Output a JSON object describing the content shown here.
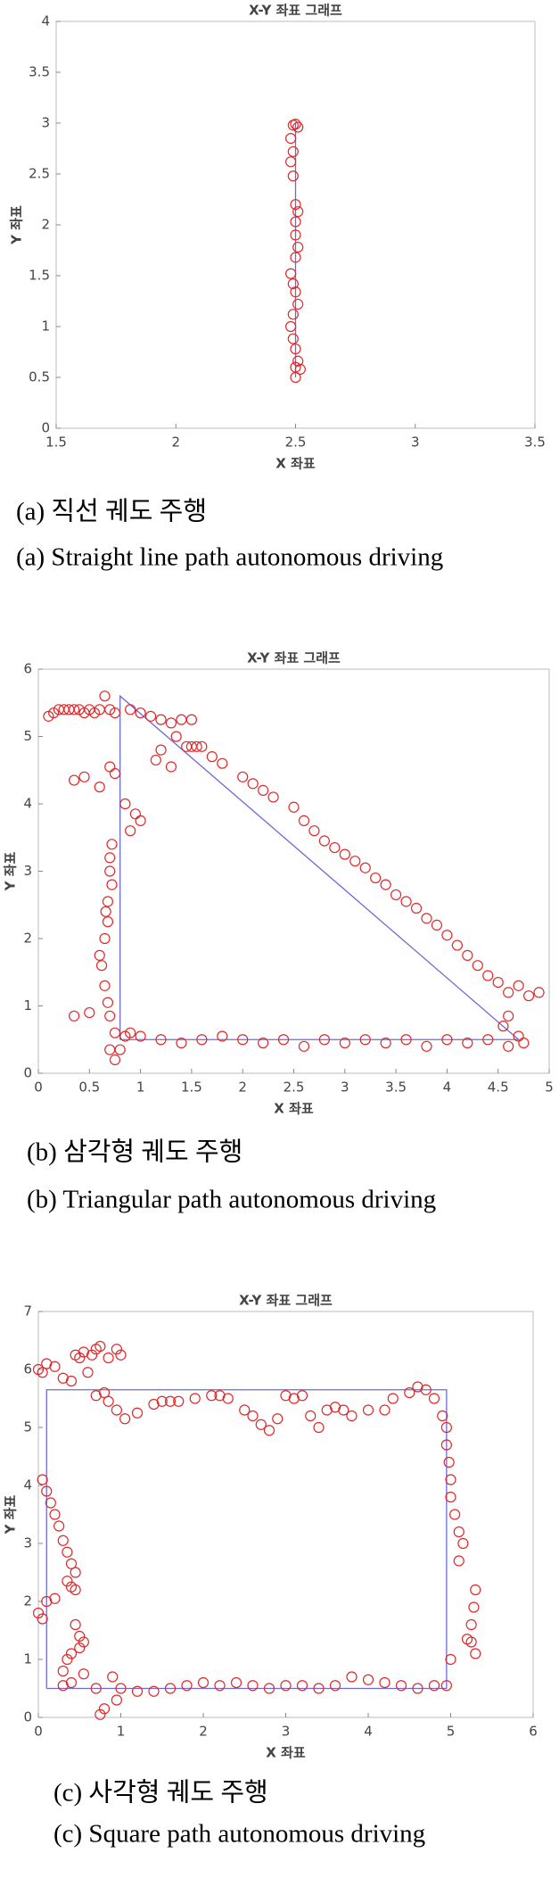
{
  "chart_data": [
    {
      "type": "scatter",
      "title": "X-Y 좌표 그래프",
      "xlabel": "X 좌표",
      "ylabel": "Y 좌표",
      "xlim": [
        1.5,
        3.5
      ],
      "xticks": [
        1.5,
        2,
        2.5,
        3,
        3.5
      ],
      "ylim": [
        0,
        4
      ],
      "yticks": [
        0,
        0.5,
        1,
        1.5,
        2,
        2.5,
        3,
        3.5,
        4
      ],
      "captions": [
        "(a) 직선 궤도 주행",
        "(a) Straight line path autonomous driving"
      ],
      "series": [
        {
          "style": "line",
          "color": "#6b6bd6",
          "x": [
            2.5,
            2.5
          ],
          "values": [
            0.5,
            3
          ]
        },
        {
          "style": "marker",
          "color": "#e0282a",
          "x": [
            2.49,
            2.5,
            2.51,
            2.48,
            2.49,
            2.48,
            2.49,
            2.5,
            2.51,
            2.5,
            2.5,
            2.51,
            2.5,
            2.48,
            2.49,
            2.5,
            2.51,
            2.49,
            2.48,
            2.49,
            2.5,
            2.51,
            2.5,
            2.52,
            2.5
          ],
          "values": [
            2.98,
            2.99,
            2.96,
            2.85,
            2.72,
            2.62,
            2.48,
            2.2,
            2.13,
            2.03,
            1.9,
            1.78,
            1.68,
            1.52,
            1.42,
            1.34,
            1.22,
            1.12,
            1.0,
            0.88,
            0.78,
            0.66,
            0.6,
            0.58,
            0.5
          ]
        }
      ]
    },
    {
      "type": "scatter",
      "title": "X-Y 좌표 그래프",
      "xlabel": "X 좌표",
      "ylabel": "Y 좌표",
      "xlim": [
        0,
        5
      ],
      "xticks": [
        0,
        0.5,
        1,
        1.5,
        2,
        2.5,
        3,
        3.5,
        4,
        4.5,
        5
      ],
      "ylim": [
        0,
        6
      ],
      "yticks": [
        0,
        1,
        2,
        3,
        4,
        5,
        6
      ],
      "captions": [
        "(b) 삼각형 궤도 주행",
        "(b) Triangular path autonomous driving"
      ],
      "series": [
        {
          "style": "line",
          "color": "#6b6bd6",
          "x": [
            0.8,
            0.8,
            4.7,
            0.8
          ],
          "values": [
            0.5,
            5.6,
            0.5,
            0.5
          ]
        },
        {
          "style": "marker",
          "color": "#e0282a",
          "x": [
            0.1,
            0.15,
            0.2,
            0.25,
            0.3,
            0.35,
            0.4,
            0.45,
            0.5,
            0.55,
            0.6,
            0.65,
            0.7,
            0.75,
            0.9,
            1.0,
            1.1,
            1.2,
            1.3,
            1.4,
            1.5,
            1.35,
            1.45,
            1.5,
            1.55,
            1.6,
            1.2,
            1.15,
            1.3,
            0.35,
            0.45,
            0.6,
            0.7,
            0.75,
            0.85,
            0.95,
            1.0,
            0.9,
            0.72,
            0.7,
            0.7,
            0.72,
            0.68,
            0.66,
            0.68,
            0.65,
            0.6,
            0.62,
            0.65,
            0.68,
            0.7,
            0.75,
            0.7,
            0.75,
            0.35,
            0.5,
            0.85,
            0.8,
            1.7,
            1.8,
            2.0,
            2.1,
            2.2,
            2.3,
            2.5,
            2.6,
            2.7,
            2.8,
            2.9,
            3.0,
            3.1,
            3.2,
            3.3,
            3.4,
            3.5,
            3.6,
            3.7,
            3.8,
            3.9,
            4.0,
            4.1,
            4.2,
            4.3,
            4.4,
            4.5,
            4.6,
            4.7,
            4.8,
            4.9,
            4.6,
            4.55,
            0.9,
            1.0,
            1.2,
            1.4,
            1.6,
            1.8,
            2.0,
            2.2,
            2.4,
            2.6,
            2.8,
            3.0,
            3.2,
            3.4,
            3.6,
            3.8,
            4.0,
            4.2,
            4.4,
            4.6,
            4.7,
            4.75
          ],
          "values": [
            5.3,
            5.35,
            5.4,
            5.4,
            5.4,
            5.4,
            5.4,
            5.35,
            5.4,
            5.35,
            5.4,
            5.6,
            5.4,
            5.35,
            5.4,
            5.35,
            5.3,
            5.25,
            5.2,
            5.25,
            5.25,
            5.0,
            4.85,
            4.85,
            4.85,
            4.85,
            4.8,
            4.65,
            4.55,
            4.35,
            4.4,
            4.25,
            4.55,
            4.45,
            4.0,
            3.85,
            3.75,
            3.6,
            3.4,
            3.2,
            3.0,
            2.8,
            2.55,
            2.4,
            2.25,
            2.0,
            1.75,
            1.6,
            1.3,
            1.05,
            0.85,
            0.6,
            0.35,
            0.2,
            0.85,
            0.9,
            0.55,
            0.35,
            4.7,
            4.6,
            4.4,
            4.3,
            4.2,
            4.1,
            3.95,
            3.75,
            3.6,
            3.45,
            3.35,
            3.25,
            3.15,
            3.05,
            2.9,
            2.8,
            2.65,
            2.55,
            2.45,
            2.3,
            2.2,
            2.05,
            1.9,
            1.75,
            1.6,
            1.45,
            1.35,
            1.2,
            1.3,
            1.15,
            1.2,
            0.85,
            0.7,
            0.6,
            0.55,
            0.5,
            0.45,
            0.5,
            0.55,
            0.5,
            0.45,
            0.5,
            0.4,
            0.5,
            0.45,
            0.5,
            0.45,
            0.5,
            0.4,
            0.5,
            0.45,
            0.5,
            0.4,
            0.55,
            0.45
          ]
        }
      ]
    },
    {
      "type": "scatter",
      "title": "X-Y 좌표 그래프",
      "xlabel": "X 좌표",
      "ylabel": "Y 좌표",
      "xlim": [
        0,
        6
      ],
      "xticks": [
        0,
        1,
        2,
        3,
        4,
        5,
        6
      ],
      "ylim": [
        0,
        7
      ],
      "yticks": [
        0,
        1,
        2,
        3,
        4,
        5,
        6,
        7
      ],
      "captions": [
        "(c) 사각형 궤도 주행",
        "(c) Square path autonomous driving"
      ],
      "series": [
        {
          "style": "line",
          "color": "#6b6bd6",
          "x": [
            0.1,
            0.1,
            4.95,
            4.95,
            0.1
          ],
          "values": [
            0.5,
            5.65,
            5.65,
            0.5,
            0.5
          ]
        },
        {
          "style": "marker",
          "color": "#e0282a",
          "x": [
            0,
            0.05,
            0.1,
            0.2,
            0.3,
            0.4,
            0.45,
            0.5,
            0.55,
            0.65,
            0.7,
            0.75,
            0.85,
            0.95,
            1.0,
            0.6,
            0.7,
            0.8,
            0.85,
            0.95,
            1.05,
            1.2,
            1.4,
            1.5,
            1.6,
            1.7,
            1.9,
            2.1,
            2.2,
            2.3,
            2.5,
            2.6,
            2.7,
            2.8,
            2.9,
            3.0,
            3.1,
            3.2,
            3.3,
            3.4,
            3.5,
            3.6,
            3.7,
            3.8,
            4.0,
            4.2,
            4.3,
            4.5,
            4.6,
            4.7,
            4.8,
            4.9,
            4.95,
            4.95,
            4.98,
            5.0,
            5.0,
            5.05,
            5.1,
            5.15,
            5.1,
            5.3,
            5.28,
            5.25,
            5.25,
            5.3,
            5.2,
            5.0,
            4.95,
            4.8,
            4.6,
            4.4,
            4.2,
            4.0,
            3.8,
            3.6,
            3.4,
            3.2,
            3.0,
            2.8,
            2.6,
            2.4,
            2.2,
            2.0,
            1.8,
            1.6,
            1.4,
            1.2,
            1.0,
            0.9,
            0.95,
            0.8,
            0.75,
            0.7,
            0.55,
            0.5,
            0.4,
            0.4,
            0.05,
            0.1,
            0.15,
            0.2,
            0.25,
            0.3,
            0.35,
            0.4,
            0.45,
            0.35,
            0.4,
            0.45,
            0.2,
            0.1,
            0,
            0.05,
            0.45,
            0.5,
            0.55,
            0.35,
            0.3,
            0.3
          ],
          "values": [
            6.0,
            5.95,
            6.1,
            6.05,
            5.85,
            5.8,
            6.25,
            6.2,
            6.3,
            6.25,
            6.35,
            6.4,
            6.2,
            6.35,
            6.25,
            5.95,
            5.55,
            5.6,
            5.45,
            5.3,
            5.15,
            5.25,
            5.4,
            5.45,
            5.45,
            5.45,
            5.5,
            5.55,
            5.55,
            5.5,
            5.3,
            5.2,
            5.05,
            4.95,
            5.15,
            5.55,
            5.5,
            5.55,
            5.2,
            5.0,
            5.3,
            5.35,
            5.3,
            5.2,
            5.3,
            5.3,
            5.5,
            5.6,
            5.7,
            5.65,
            5.5,
            5.2,
            5.0,
            4.7,
            4.4,
            4.1,
            3.8,
            3.5,
            3.2,
            3.0,
            2.7,
            2.2,
            1.9,
            1.6,
            1.3,
            1.1,
            1.35,
            1.0,
            0.55,
            0.55,
            0.5,
            0.55,
            0.6,
            0.65,
            0.7,
            0.55,
            0.5,
            0.55,
            0.55,
            0.5,
            0.55,
            0.6,
            0.55,
            0.6,
            0.55,
            0.5,
            0.45,
            0.45,
            0.5,
            0.7,
            0.3,
            0.15,
            0.05,
            0.5,
            0.75,
            1.2,
            1.1,
            0.6,
            4.1,
            3.9,
            3.7,
            3.5,
            3.3,
            3.05,
            2.85,
            2.65,
            2.5,
            2.35,
            2.25,
            2.2,
            2.05,
            2.0,
            1.8,
            1.7,
            1.6,
            1.4,
            1.3,
            1.0,
            0.8,
            0.55
          ]
        }
      ]
    }
  ]
}
